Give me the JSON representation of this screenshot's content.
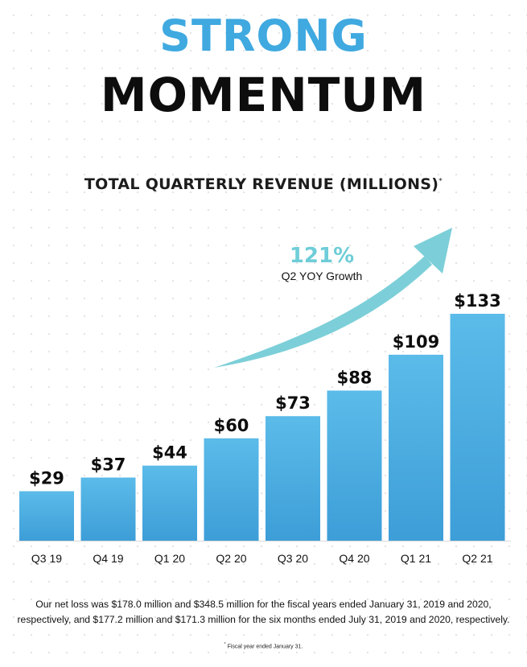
{
  "headline": {
    "line1": "STRONG",
    "line2": "MOMENTUM",
    "line1_color": "#3fa9e0",
    "line2_color": "#0d0d0d"
  },
  "chart_data": {
    "type": "bar",
    "title": "TOTAL QUARTERLY REVENUE (MILLIONS)",
    "title_marker": "*",
    "categories": [
      "Q3 19",
      "Q4 19",
      "Q1 20",
      "Q2 20",
      "Q3 20",
      "Q4 20",
      "Q1 21",
      "Q2 21"
    ],
    "values": [
      29,
      37,
      44,
      60,
      73,
      88,
      109,
      133
    ],
    "value_labels": [
      "$29",
      "$37",
      "$44",
      "$60",
      "$73",
      "$88",
      "$109",
      "$133"
    ],
    "xlabel": "",
    "ylabel": "",
    "ylim": [
      0,
      133
    ],
    "grid": false,
    "legend": "none",
    "bar_color_top": "#5bbbe9",
    "bar_color_bottom": "#3d9ed8",
    "annotation": {
      "value": "121%",
      "caption": "Q2 YOY Growth",
      "arrow_color": "#7ccfd8"
    }
  },
  "footnote": {
    "line1": "Our net loss was $178.0 million and $348.5 million for the fiscal years ended January 31, 2019 and 2020,",
    "line2": "respectively, and $177.2 million and $171.3 million for the six months ended July 31, 2019 and 2020, respectively.",
    "fiscal_marker": "*",
    "fiscal_note": "Fiscal year ended January 31."
  }
}
